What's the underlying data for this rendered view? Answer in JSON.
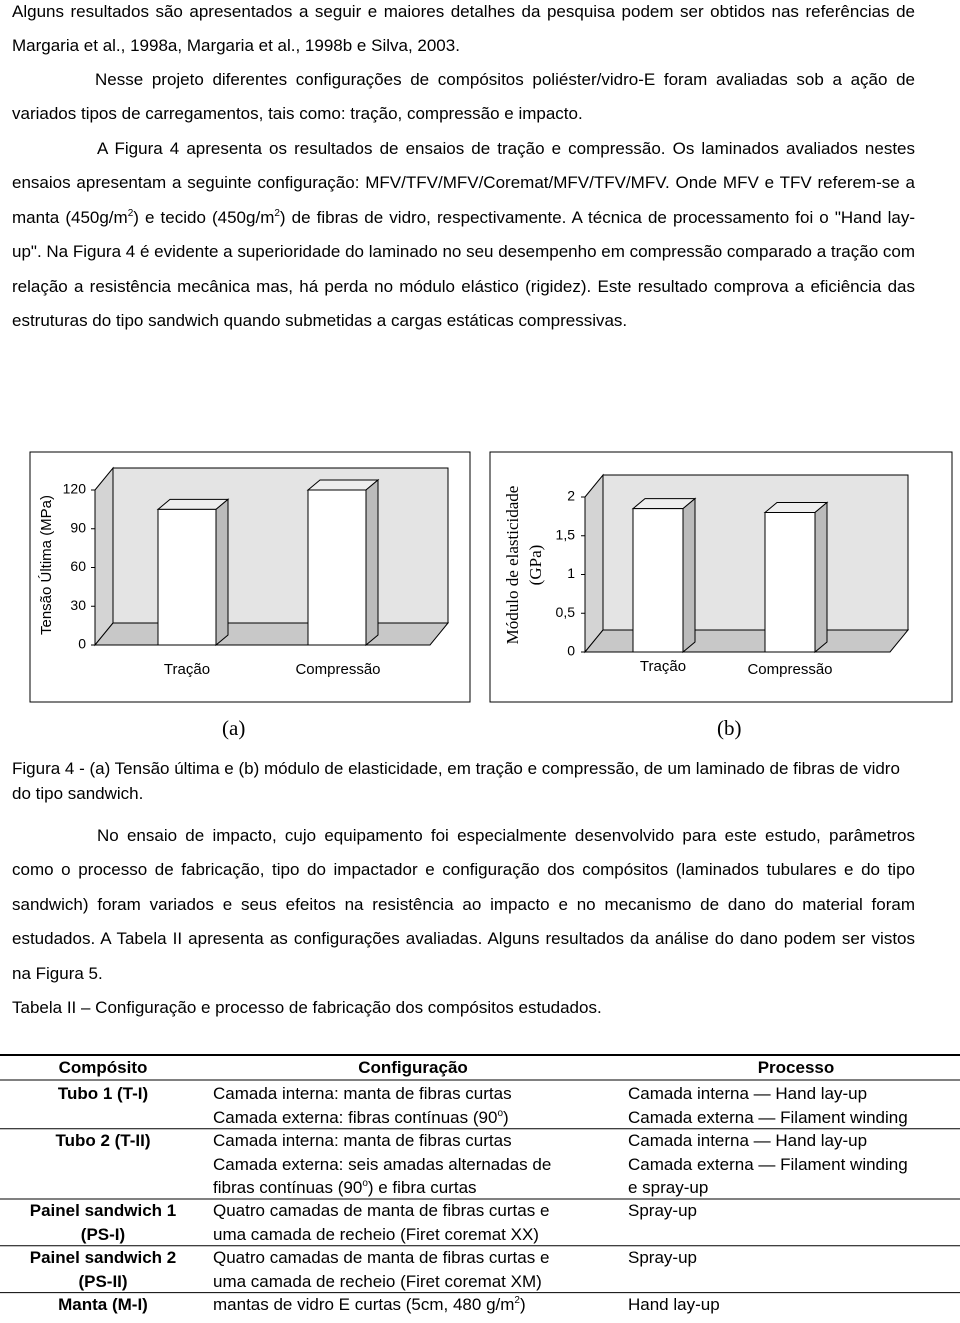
{
  "body_top": [
    [
      "Alguns resultados são apresentados a seguir e maiores detalhes da pesquisa podem ser obtidos nas referências de Margaria et al., 1998a, Margaria et al., 1998b e Silva, 2003."
    ],
    [
      "Nesse projeto diferentes configurações de compósitos poliéster/vidro-E foram avaliadas sob a ação de variados tipos de carregamentos, tais como: tração, compressão e impacto."
    ],
    [
      "A Figura 4 apresenta os resultados de ensaios de tração e compressão. Os laminados avaliados nestes ensaios apresentam a seguinte configuração: MFV/TFV/MFV/Coremat/MFV/TFV/MFV. Onde MFV e TFV referem-se a manta (450g/m",
      {
        "sup": "2"
      },
      ") e tecido (450g/m",
      {
        "sup": "2"
      },
      ") de fibras de vidro, respectivamente. A técnica de processamento foi o \"Hand lay-up\". Na Figura 4 é evidente a superioridade do laminado no seu desempenho em compressão comparado a tração com relação a resistência mecânica mas, há perda no módulo elástico (rigidez). Este resultado comprova a eficiência das estruturas do tipo sandwich quando submetidas a cargas estáticas compressivas."
    ]
  ],
  "chart_data": [
    {
      "type": "bar3d",
      "y_label": "Tensão Última (MPa)",
      "categories": [
        "Tração",
        "Compressão"
      ],
      "values": [
        105,
        120
      ],
      "ylim": [
        0,
        120
      ],
      "yticks": [
        0,
        30,
        60,
        90,
        120
      ]
    },
    {
      "type": "bar3d",
      "y_label": [
        "Módulo de elasticidade",
        "(GPa)"
      ],
      "categories": [
        "Tração",
        "Compressão"
      ],
      "values": [
        1.85,
        1.8
      ],
      "ylim": [
        0,
        2
      ],
      "yticks": [
        0,
        {
          "value": 0.5,
          "label": "0,5"
        },
        1,
        {
          "value": 1.5,
          "label": "1,5"
        },
        2
      ]
    }
  ],
  "figure": {
    "panel_labels": [
      "(a)",
      "(b)"
    ],
    "caption": "Figura 4 - (a) Tensão última e (b) módulo de elasticidade, em tração e compressão, de um laminado de fibras de vidro do tipo sandwich."
  },
  "body_bottom": [
    [
      "No ensaio de impacto, cujo equipamento foi especialmente desenvolvido para este estudo, parâmetros como o processo de fabricação, tipo do impactador e configuração dos compósitos (laminados tubulares e do tipo sandwich) foram variados e seus efeitos na resistência ao impacto e no mecanismo de dano do material foram estudados. A Tabela II apresenta as configurações avaliadas. Alguns resultados da análise do dano podem ser vistos na Figura 5."
    ]
  ],
  "table": {
    "caption": "Tabela II – Configuração e processo de fabricação dos compósitos estudados.",
    "header": [
      "Compósito",
      "Configuração",
      "Processo"
    ],
    "rows": [
      [
        [
          "Tubo 1 (T-I)"
        ],
        [
          "Camada interna: manta de fibras curtas",
          [
            "Camada externa: fibras contínuas (90",
            {
              "sup": "o"
            },
            ")"
          ]
        ],
        [
          "Camada interna — Hand lay-up",
          "Camada externa — Filament winding"
        ]
      ],
      [
        [
          "Tubo 2 (T-II)"
        ],
        [
          "Camada interna: manta de fibras curtas",
          "Camada externa: seis amadas alternadas de",
          [
            "fibras contínuas (90",
            {
              "sup": "o"
            },
            ") e fibra curtas"
          ]
        ],
        [
          "Camada interna — Hand lay-up",
          "Camada externa — Filament winding",
          "e spray-up"
        ]
      ],
      [
        [
          "Painel sandwich 1",
          "(PS-I)"
        ],
        [
          "Quatro camadas de manta de fibras curtas e",
          "uma camada de recheio (Firet coremat XX)"
        ],
        [
          "Spray-up"
        ]
      ],
      [
        [
          "Painel sandwich 2",
          "(PS-II)"
        ],
        [
          "Quatro camadas de manta de fibras curtas e",
          "uma camada de recheio (Firet coremat XM)"
        ],
        [
          "Spray-up"
        ]
      ],
      [
        [
          "Manta (M-I)"
        ],
        [
          [
            "mantas de vidro E curtas (5cm, 480 g/m",
            {
              "sup": "2"
            },
            ")"
          ]
        ],
        [
          "Hand lay-up"
        ]
      ]
    ]
  }
}
